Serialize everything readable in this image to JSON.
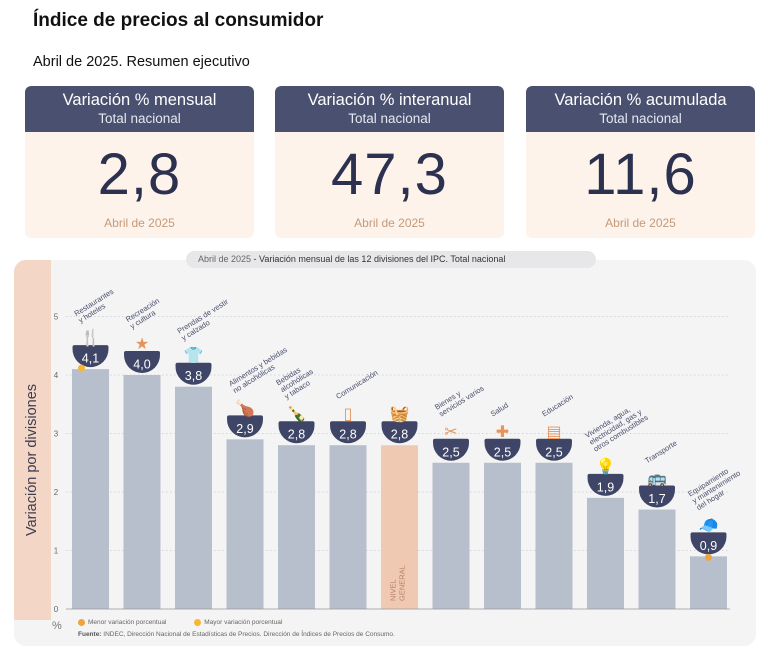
{
  "header": {
    "title": "Índice de precios al consumidor",
    "subtitle": "Abril de 2025. Resumen ejecutivo"
  },
  "cards": [
    {
      "title": "Variación % mensual",
      "subtitle": "Total nacional",
      "value": "2,8",
      "date": "Abril de 2025"
    },
    {
      "title": "Variación % interanual",
      "subtitle": "Total nacional",
      "value": "47,3",
      "date": "Abril de 2025"
    },
    {
      "title": "Variación % acumulada",
      "subtitle": "Total nacional",
      "value": "11,6",
      "date": "Abril de 2025"
    }
  ],
  "chart_data": {
    "type": "bar",
    "title_prefix": "Abril de 2025",
    "title": " - Variación mensual de las 12 divisiones del IPC. Total nacional",
    "ylabel": "Variación por divisiones",
    "yunit": "%",
    "ylim": [
      0,
      5
    ],
    "yticks": [
      0,
      1,
      2,
      3,
      4,
      5
    ],
    "grid": true,
    "categories": [
      [
        "Restaurantes",
        "y hoteles"
      ],
      [
        "Recreación",
        "y cultura"
      ],
      [
        "Prendas de vestir",
        "y calzado"
      ],
      [
        "Alimentos y bebidas",
        "no alcohólicas"
      ],
      [
        "Bebidas",
        "alcohólicas",
        "y tabaco"
      ],
      [
        "Comunicación"
      ],
      [
        "NIVEL",
        "GENERAL"
      ],
      [
        "Bienes y",
        "servicios varios"
      ],
      [
        "Salud"
      ],
      [
        "Educación"
      ],
      [
        "Vivienda, agua,",
        "electricidad, gas y",
        "otros combustibles"
      ],
      [
        "Transporte"
      ],
      [
        "Equipamiento",
        "y mantenimiento",
        "del hogar"
      ]
    ],
    "values": [
      4.1,
      4.0,
      3.8,
      2.9,
      2.8,
      2.8,
      2.8,
      2.5,
      2.5,
      2.5,
      1.9,
      1.7,
      0.9
    ],
    "value_labels": [
      "4,1",
      "4,0",
      "3,8",
      "2,9",
      "2,8",
      "2,8",
      "2,8",
      "2,5",
      "2,5",
      "2,5",
      "1,9",
      "1,7",
      "0,9"
    ],
    "highlight_index": 6,
    "icons": [
      "restaurant-icon",
      "recreation-icon",
      "clothing-icon",
      "food-icon",
      "beverage-icon",
      "phone-icon",
      "basket-icon",
      "tools-icon",
      "health-cross-icon",
      "book-icon",
      "lightbulb-icon",
      "bus-icon",
      "hat-icon"
    ],
    "colors": {
      "bar": "#b8bfcc",
      "highlight_bar": "#f0c9b2",
      "bubble": "#3f4566",
      "icon_orange": "#e8935a",
      "min_dot": "#f2a33a",
      "max_dot": "#f7b733",
      "grid": "#b0b3bf"
    },
    "legend": [
      {
        "label": "Menor variación porcentual",
        "color": "#f2a33a"
      },
      {
        "label": "Mayor variación porcentual",
        "color": "#f7b733"
      }
    ],
    "max_marker_index": 0,
    "min_marker_index": 12,
    "source_label": "Fuente:",
    "source": " INDEC, Dirección Nacional de Estadísticas de Precios. Dirección de Índices de Precios de Consumo."
  }
}
